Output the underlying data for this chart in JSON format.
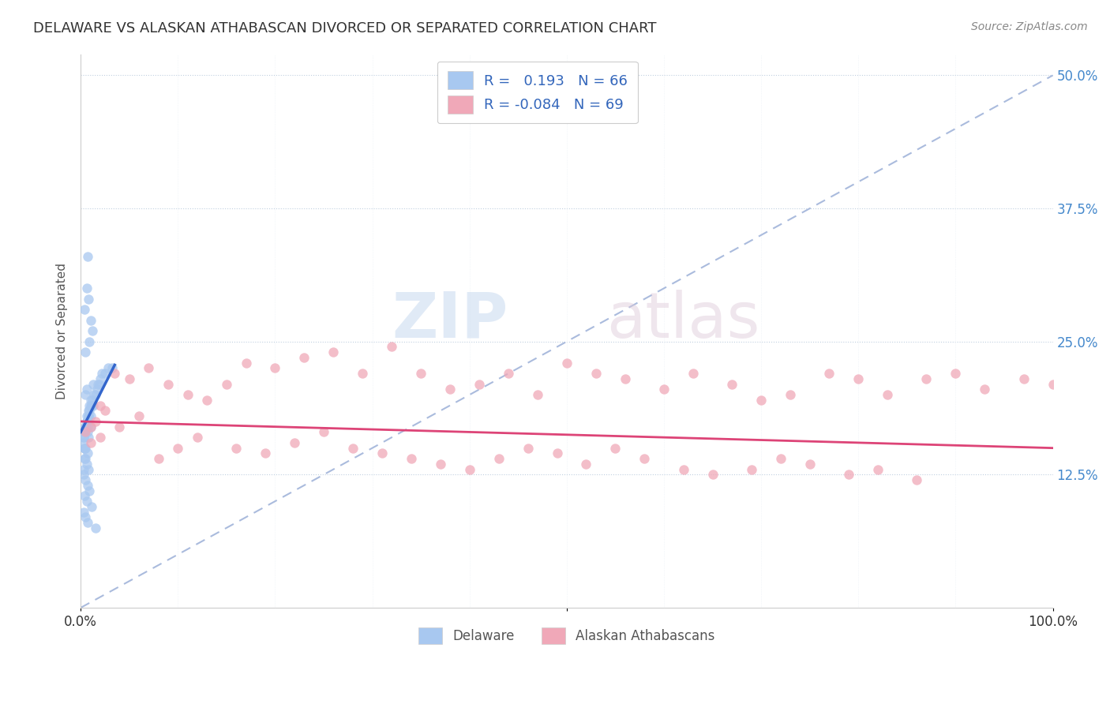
{
  "title": "DELAWARE VS ALASKAN ATHABASCAN DIVORCED OR SEPARATED CORRELATION CHART",
  "source": "Source: ZipAtlas.com",
  "ylabel": "Divorced or Separated",
  "background_color": "#ffffff",
  "blue_color": "#a8c8f0",
  "pink_color": "#f0a8b8",
  "blue_line_color": "#3366cc",
  "pink_line_color": "#dd4477",
  "dashed_line_color": "#aabbdd",
  "blue_x": [
    0.5,
    0.8,
    1.2,
    1.8,
    2.5,
    3.2,
    0.3,
    0.6,
    0.9,
    1.1,
    1.5,
    2.0,
    0.4,
    0.7,
    1.0,
    1.3,
    1.7,
    2.2,
    0.2,
    0.5,
    0.8,
    1.4,
    1.9,
    0.3,
    0.6,
    1.0,
    0.4,
    0.7,
    0.5,
    0.9,
    1.2,
    0.6,
    0.8,
    1.0,
    0.5,
    0.7,
    0.4,
    0.6,
    0.8,
    0.3,
    0.5,
    0.7,
    0.9,
    0.4,
    0.6,
    1.1,
    0.3,
    0.5,
    0.7,
    1.5,
    0.8,
    1.0,
    0.6,
    0.9,
    0.5,
    1.3,
    0.4,
    0.7,
    0.6,
    0.8,
    0.5,
    0.3,
    1.0,
    0.6,
    2.8,
    0.4
  ],
  "blue_y": [
    17.0,
    18.0,
    19.5,
    21.0,
    22.0,
    22.5,
    16.0,
    17.5,
    18.5,
    19.0,
    20.0,
    21.5,
    16.5,
    17.0,
    18.0,
    19.0,
    20.5,
    22.0,
    15.5,
    17.0,
    18.0,
    20.0,
    21.0,
    16.0,
    17.5,
    19.0,
    28.0,
    33.0,
    24.0,
    25.0,
    26.0,
    30.0,
    29.0,
    27.0,
    15.0,
    14.5,
    14.0,
    13.5,
    13.0,
    12.5,
    12.0,
    11.5,
    11.0,
    10.5,
    10.0,
    9.5,
    9.0,
    8.5,
    8.0,
    7.5,
    16.0,
    17.0,
    18.0,
    19.0,
    20.0,
    21.0,
    15.0,
    16.5,
    17.5,
    18.5,
    14.0,
    13.0,
    19.5,
    20.5,
    22.5,
    15.0
  ],
  "pink_x": [
    0.5,
    1.0,
    1.5,
    2.0,
    2.5,
    3.5,
    5.0,
    7.0,
    9.0,
    11.0,
    13.0,
    15.0,
    17.0,
    20.0,
    23.0,
    26.0,
    29.0,
    32.0,
    35.0,
    38.0,
    41.0,
    44.0,
    47.0,
    50.0,
    53.0,
    56.0,
    60.0,
    63.0,
    67.0,
    70.0,
    73.0,
    77.0,
    80.0,
    83.0,
    87.0,
    90.0,
    93.0,
    97.0,
    100.0,
    1.0,
    2.0,
    4.0,
    6.0,
    8.0,
    10.0,
    12.0,
    16.0,
    19.0,
    22.0,
    25.0,
    28.0,
    31.0,
    34.0,
    37.0,
    40.0,
    43.0,
    46.0,
    49.0,
    52.0,
    55.0,
    58.0,
    62.0,
    65.0,
    69.0,
    72.0,
    75.0,
    79.0,
    82.0,
    86.0
  ],
  "pink_y": [
    16.5,
    17.0,
    17.5,
    19.0,
    18.5,
    22.0,
    21.5,
    22.5,
    21.0,
    20.0,
    19.5,
    21.0,
    23.0,
    22.5,
    23.5,
    24.0,
    22.0,
    24.5,
    22.0,
    20.5,
    21.0,
    22.0,
    20.0,
    23.0,
    22.0,
    21.5,
    20.5,
    22.0,
    21.0,
    19.5,
    20.0,
    22.0,
    21.5,
    20.0,
    21.5,
    22.0,
    20.5,
    21.5,
    21.0,
    15.5,
    16.0,
    17.0,
    18.0,
    14.0,
    15.0,
    16.0,
    15.0,
    14.5,
    15.5,
    16.5,
    15.0,
    14.5,
    14.0,
    13.5,
    13.0,
    14.0,
    15.0,
    14.5,
    13.5,
    15.0,
    14.0,
    13.0,
    12.5,
    13.0,
    14.0,
    13.5,
    12.5,
    13.0,
    12.0
  ],
  "xlim": [
    0,
    100
  ],
  "ylim": [
    0,
    52
  ],
  "yticks": [
    0,
    12.5,
    25.0,
    37.5,
    50.0
  ],
  "ytick_labels": [
    "",
    "12.5%",
    "25.0%",
    "37.5%",
    "50.0%"
  ],
  "xtick_positions": [
    0,
    50,
    100
  ],
  "xtick_labels": [
    "0.0%",
    "",
    "100.0%"
  ]
}
